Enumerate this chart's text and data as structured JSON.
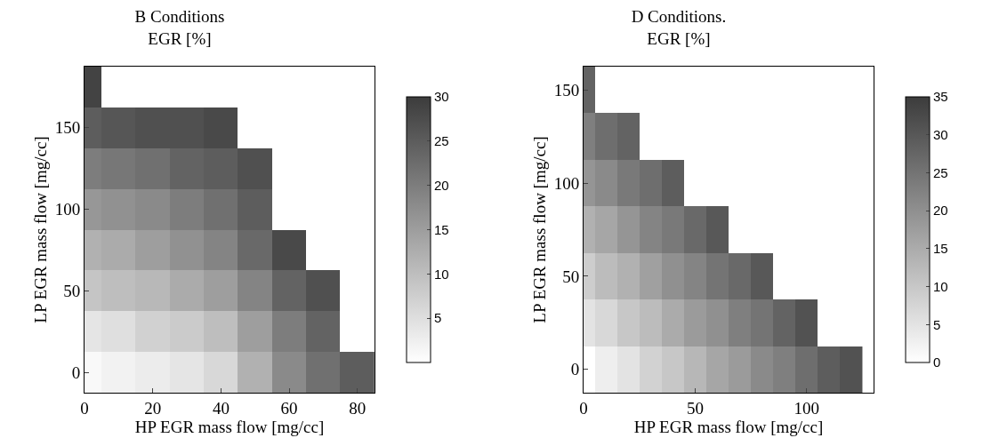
{
  "chart_data": [
    {
      "type": "heatmap",
      "title": "B Conditions\nEGR [%]",
      "xlabel": "HP EGR mass flow [mg/cc]",
      "ylabel": "LP EGR mass flow [mg/cc]",
      "x": [
        0,
        10,
        20,
        30,
        40,
        50,
        60,
        70,
        80
      ],
      "y_categories": [
        null,
        "150",
        null,
        "100",
        null,
        "50",
        null,
        "0"
      ],
      "cells": [
        [
          29,
          null,
          null,
          null,
          null,
          null,
          null,
          null,
          null
        ],
        [
          25,
          26,
          27,
          27,
          28,
          null,
          null,
          null,
          null
        ],
        [
          20,
          21,
          22,
          24,
          25,
          27,
          null,
          null,
          null
        ],
        [
          16,
          17,
          18,
          20,
          22,
          25,
          null,
          null,
          null
        ],
        [
          12,
          13,
          15,
          17,
          19,
          23,
          28,
          null,
          null
        ],
        [
          9,
          10,
          11,
          13,
          15,
          19,
          24,
          27,
          null
        ],
        [
          4,
          5,
          7,
          8,
          10,
          15,
          20,
          24,
          null
        ],
        [
          1,
          2,
          3,
          4,
          6,
          12,
          18,
          22,
          25
        ]
      ],
      "xlim": [
        0,
        85
      ],
      "xticks": [
        0,
        20,
        40,
        60,
        80
      ],
      "clim": [
        0,
        30
      ],
      "cticks": [
        5,
        10,
        15,
        20,
        25,
        30
      ],
      "grid": false
    },
    {
      "type": "heatmap",
      "title": "D Conditions.\nEGR [%]",
      "xlabel": "HP EGR mass flow [mg/cc]",
      "ylabel": "LP EGR mass flow [mg/cc]",
      "x": [
        0,
        10,
        20,
        30,
        40,
        50,
        60,
        70,
        80,
        90,
        100,
        110,
        120
      ],
      "y_categories": [
        "150",
        null,
        "100",
        null,
        "50",
        null,
        "0"
      ],
      "cells": [
        [
          28,
          null,
          null,
          null,
          null,
          null,
          null,
          null,
          null,
          null,
          null,
          null,
          null
        ],
        [
          23,
          26,
          28,
          null,
          null,
          null,
          null,
          null,
          null,
          null,
          null,
          null,
          null
        ],
        [
          19,
          21,
          24,
          26,
          29,
          null,
          null,
          null,
          null,
          null,
          null,
          null,
          null
        ],
        [
          14,
          16,
          19,
          22,
          24,
          27,
          30,
          null,
          null,
          null,
          null,
          null,
          null
        ],
        [
          9,
          12,
          14,
          17,
          20,
          22,
          25,
          27,
          30,
          null,
          null,
          null,
          null
        ],
        [
          5,
          7,
          10,
          12,
          15,
          18,
          20,
          23,
          25,
          28,
          31,
          null,
          null
        ],
        [
          0,
          3,
          5,
          8,
          10,
          13,
          16,
          18,
          21,
          23,
          26,
          29,
          31
        ]
      ],
      "xlim": [
        0,
        130
      ],
      "xticks": [
        0,
        50,
        100
      ],
      "clim": [
        0,
        35
      ],
      "cticks": [
        0,
        5,
        10,
        15,
        20,
        25,
        30,
        35
      ],
      "grid": false
    }
  ]
}
